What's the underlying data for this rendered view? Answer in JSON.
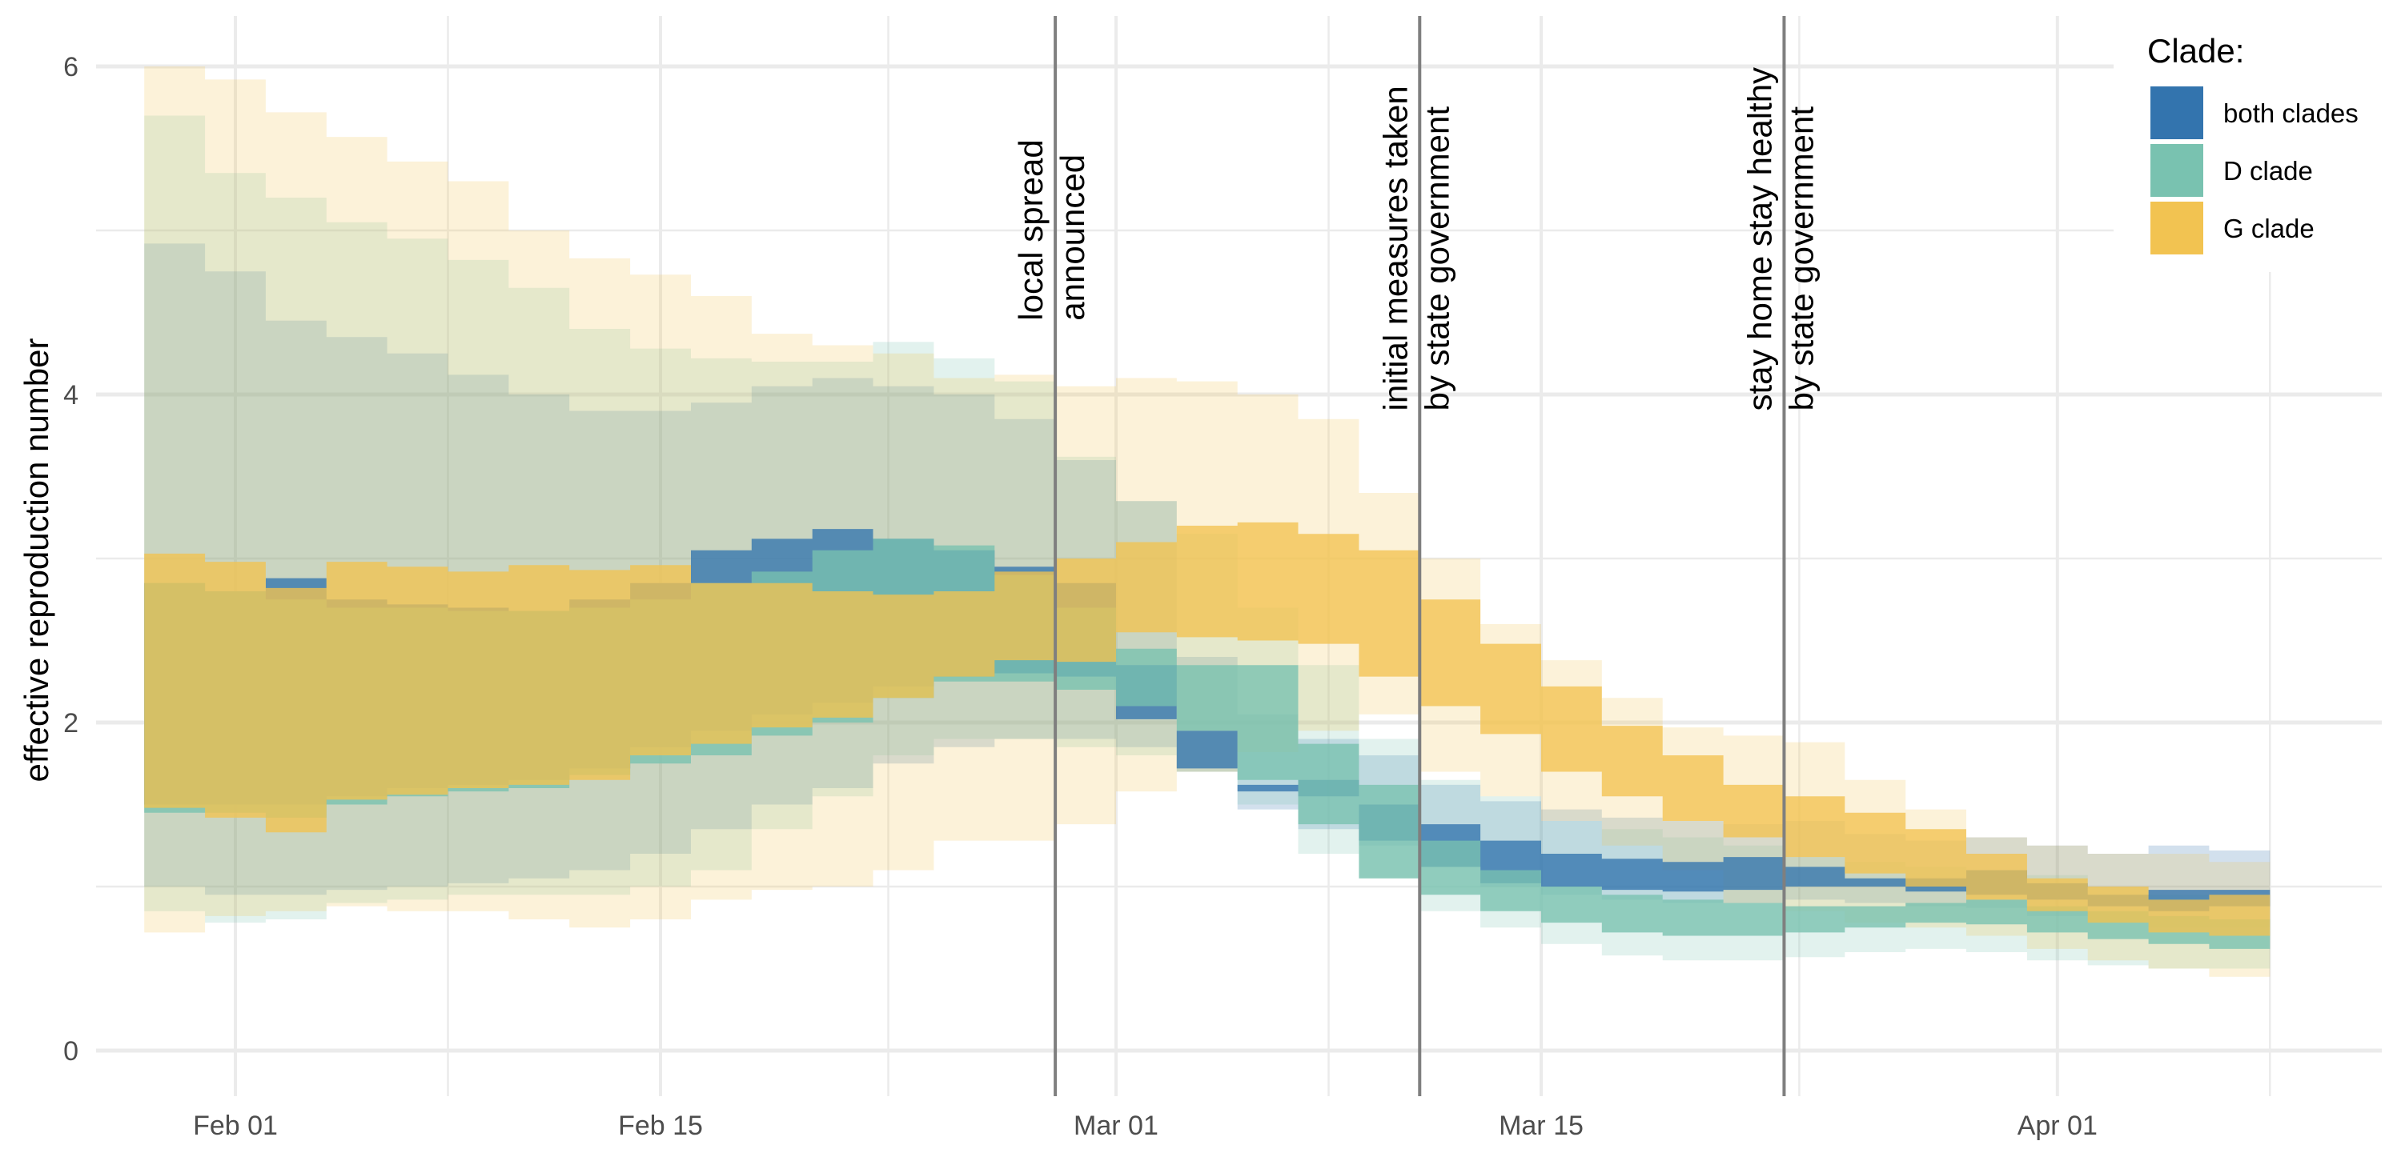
{
  "chart_data": {
    "type": "area",
    "subtype": "step ribbon (credible intervals)",
    "title": "",
    "xlabel": "",
    "ylabel": "effective reproduction number",
    "ylim": [
      0,
      6
    ],
    "y_ticks": [
      0,
      2,
      4,
      6
    ],
    "y_tick_labels": [
      "0",
      "2",
      "4",
      "6"
    ],
    "x_range": [
      "2020-01-27",
      "2020-04-11"
    ],
    "x_ticks": [
      "2020-02-01",
      "2020-02-15",
      "2020-03-01",
      "2020-03-15",
      "2020-04-01"
    ],
    "x_tick_labels": [
      "Feb 01",
      "Feb 15",
      "Mar 01",
      "Mar 15",
      "Apr 01"
    ],
    "grid": true,
    "step_start": "2020-01-29",
    "step_days": 2,
    "legend": {
      "title": "Clade:",
      "position": "top-right",
      "entries": [
        {
          "name": "both clades",
          "color": "#3374ae"
        },
        {
          "name": "D clade",
          "color": "#79c2b0"
        },
        {
          "name": "G clade",
          "color": "#f2c351"
        }
      ]
    },
    "annotations": [
      {
        "date": "2020-02-28",
        "lines": [
          "local spread",
          "announced"
        ],
        "y": 4.45
      },
      {
        "date": "2020-03-11",
        "lines": [
          "initial measures taken",
          "by state government"
        ],
        "y": 3.9
      },
      {
        "date": "2020-03-23",
        "lines": [
          "stay home stay healthy",
          "by state government"
        ],
        "y": 3.9
      }
    ],
    "series": [
      {
        "name": "both clades",
        "color": "#3374ae",
        "ci95_upper": [
          4.92,
          4.75,
          4.45,
          4.35,
          4.25,
          4.12,
          4.0,
          3.9,
          3.9,
          3.95,
          4.05,
          4.1,
          4.05,
          4.0,
          3.85,
          3.6,
          3.35,
          2.4,
          2.05,
          1.9,
          1.8,
          1.62,
          1.52,
          1.47,
          1.42,
          1.4,
          1.38,
          1.4,
          1.32,
          1.28,
          1.3,
          1.25,
          1.2,
          1.25,
          1.22
        ],
        "ci95_lower": [
          1.0,
          0.95,
          0.95,
          0.98,
          1.0,
          1.02,
          1.05,
          1.1,
          1.2,
          1.35,
          1.5,
          1.6,
          1.75,
          1.85,
          1.9,
          1.9,
          1.85,
          1.7,
          1.47,
          1.35,
          1.25,
          1.12,
          1.0,
          0.95,
          0.92,
          0.9,
          0.9,
          0.92,
          0.9,
          0.88,
          0.87,
          0.82,
          0.78,
          0.75,
          0.75
        ],
        "ci50_upper": [
          2.85,
          2.8,
          2.88,
          2.75,
          2.72,
          2.7,
          2.68,
          2.75,
          2.85,
          3.05,
          3.12,
          3.18,
          3.12,
          3.05,
          2.95,
          2.85,
          2.35,
          1.95,
          1.62,
          1.65,
          1.5,
          1.38,
          1.28,
          1.2,
          1.17,
          1.15,
          1.18,
          1.12,
          1.05,
          1.05,
          1.1,
          1.02,
          0.95,
          0.98,
          0.98
        ],
        "ci50_lower": [
          1.5,
          1.5,
          1.5,
          1.55,
          1.6,
          1.62,
          1.65,
          1.72,
          1.85,
          1.95,
          2.05,
          2.12,
          2.22,
          2.28,
          2.3,
          2.28,
          2.02,
          1.72,
          1.58,
          1.55,
          1.28,
          1.12,
          1.02,
          1.0,
          0.98,
          0.97,
          0.98,
          1.0,
          1.0,
          0.97,
          0.95,
          0.92,
          0.88,
          0.85,
          0.88
        ]
      },
      {
        "name": "D clade",
        "color": "#79c2b0",
        "ci95_upper": [
          5.7,
          5.35,
          5.2,
          5.05,
          4.95,
          4.82,
          4.65,
          4.4,
          4.28,
          4.22,
          4.2,
          4.2,
          4.32,
          4.22,
          4.08,
          3.62,
          3.35,
          3.15,
          2.7,
          2.35,
          1.9,
          1.65,
          1.55,
          1.4,
          1.35,
          1.3,
          1.25,
          1.18,
          1.15,
          1.12,
          1.1,
          1.07,
          1.0,
          0.95,
          0.95
        ],
        "ci95_lower": [
          0.85,
          0.78,
          0.8,
          0.9,
          0.92,
          0.95,
          0.95,
          0.95,
          1.0,
          1.1,
          1.35,
          1.55,
          1.8,
          1.9,
          1.9,
          1.85,
          1.8,
          1.7,
          1.5,
          1.2,
          1.05,
          0.85,
          0.75,
          0.65,
          0.58,
          0.55,
          0.55,
          0.57,
          0.6,
          0.62,
          0.6,
          0.55,
          0.52,
          0.5,
          0.5
        ],
        "ci50_upper": [
          2.85,
          2.8,
          2.75,
          2.7,
          2.7,
          2.68,
          2.68,
          2.7,
          2.75,
          2.85,
          2.92,
          3.05,
          3.12,
          3.08,
          2.9,
          2.7,
          2.45,
          2.35,
          2.35,
          1.87,
          1.62,
          1.28,
          1.1,
          1.0,
          0.95,
          0.92,
          0.9,
          0.88,
          0.88,
          0.9,
          0.92,
          0.88,
          0.85,
          0.82,
          0.8
        ],
        "ci50_lower": [
          1.45,
          1.45,
          1.42,
          1.5,
          1.55,
          1.58,
          1.6,
          1.68,
          1.75,
          1.8,
          1.92,
          2.0,
          2.15,
          2.25,
          2.25,
          2.2,
          2.1,
          1.95,
          1.65,
          1.38,
          1.05,
          0.95,
          0.85,
          0.78,
          0.72,
          0.7,
          0.7,
          0.72,
          0.75,
          0.78,
          0.77,
          0.72,
          0.68,
          0.65,
          0.62
        ]
      },
      {
        "name": "G clade",
        "color": "#f2c351",
        "ci95_upper": [
          6.0,
          5.92,
          5.72,
          5.57,
          5.42,
          5.3,
          5.0,
          4.83,
          4.73,
          4.6,
          4.37,
          4.3,
          4.25,
          4.1,
          4.12,
          4.05,
          4.1,
          4.08,
          4.0,
          3.85,
          3.4,
          3.0,
          2.6,
          2.38,
          2.15,
          1.97,
          1.92,
          1.88,
          1.65,
          1.47,
          1.3,
          1.25,
          1.2,
          1.2,
          1.15
        ],
        "ci95_lower": [
          0.72,
          0.82,
          0.85,
          0.88,
          0.85,
          0.85,
          0.8,
          0.75,
          0.8,
          0.92,
          0.98,
          1.0,
          1.1,
          1.28,
          1.28,
          1.38,
          1.58,
          1.7,
          1.82,
          1.95,
          2.05,
          1.7,
          1.55,
          1.4,
          1.25,
          1.1,
          0.9,
          0.85,
          0.78,
          0.75,
          0.7,
          0.62,
          0.55,
          0.5,
          0.45
        ],
        "ci50_upper": [
          3.03,
          2.98,
          2.82,
          2.98,
          2.95,
          2.92,
          2.96,
          2.93,
          2.96,
          2.85,
          2.85,
          2.8,
          2.78,
          2.8,
          2.92,
          3.0,
          3.1,
          3.2,
          3.22,
          3.15,
          3.05,
          2.75,
          2.48,
          2.22,
          1.98,
          1.8,
          1.62,
          1.55,
          1.45,
          1.35,
          1.2,
          1.05,
          1.0,
          0.92,
          0.95
        ],
        "ci50_lower": [
          1.48,
          1.42,
          1.33,
          1.53,
          1.56,
          1.6,
          1.62,
          1.65,
          1.8,
          1.87,
          1.97,
          2.03,
          2.15,
          2.28,
          2.38,
          2.37,
          2.55,
          2.52,
          2.5,
          2.48,
          2.28,
          2.1,
          1.93,
          1.7,
          1.55,
          1.4,
          1.3,
          1.18,
          1.08,
          1.0,
          0.92,
          0.85,
          0.78,
          0.72,
          0.7
        ]
      }
    ]
  }
}
